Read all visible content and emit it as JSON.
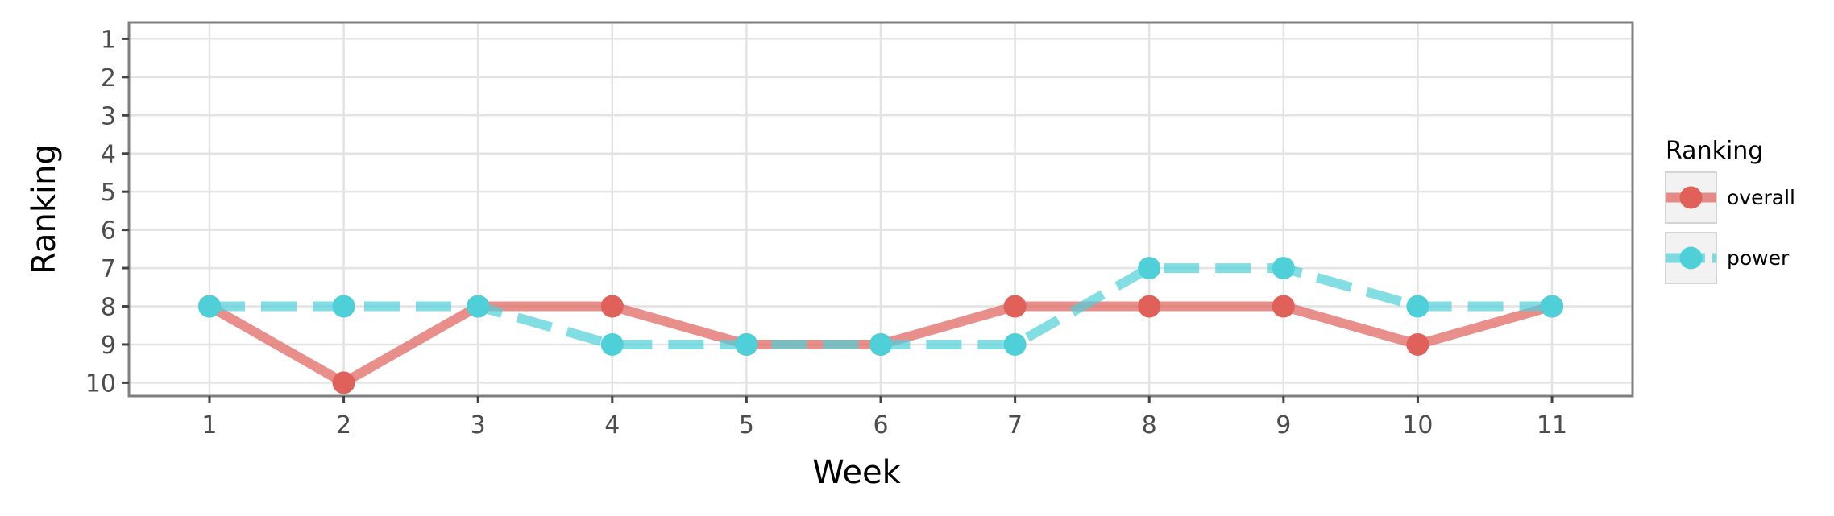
{
  "chart_data": {
    "type": "line",
    "xlabel": "Week",
    "ylabel": "Ranking",
    "x": [
      1,
      2,
      3,
      4,
      5,
      6,
      7,
      8,
      9,
      10,
      11
    ],
    "x_ticks": [
      "1",
      "2",
      "3",
      "4",
      "5",
      "6",
      "7",
      "8",
      "9",
      "10",
      "11"
    ],
    "y_ticks": [
      "1",
      "2",
      "3",
      "4",
      "5",
      "6",
      "7",
      "8",
      "9",
      "10"
    ],
    "xlim": [
      0.4,
      11.6
    ],
    "ylim": [
      10.35,
      0.57
    ],
    "y_reversed": true,
    "grid": true,
    "legend": {
      "title": "Ranking",
      "placement": "right"
    },
    "series": [
      {
        "name": "overall",
        "color": "#e0605a",
        "line_style": "solid",
        "values": [
          8,
          10,
          8,
          8,
          9,
          9,
          8,
          8,
          8,
          9,
          8
        ]
      },
      {
        "name": "power",
        "color": "#4fd0d8",
        "line_style": "dashed",
        "values": [
          8,
          8,
          8,
          9,
          9,
          9,
          9,
          7,
          7,
          8,
          8
        ]
      }
    ]
  }
}
